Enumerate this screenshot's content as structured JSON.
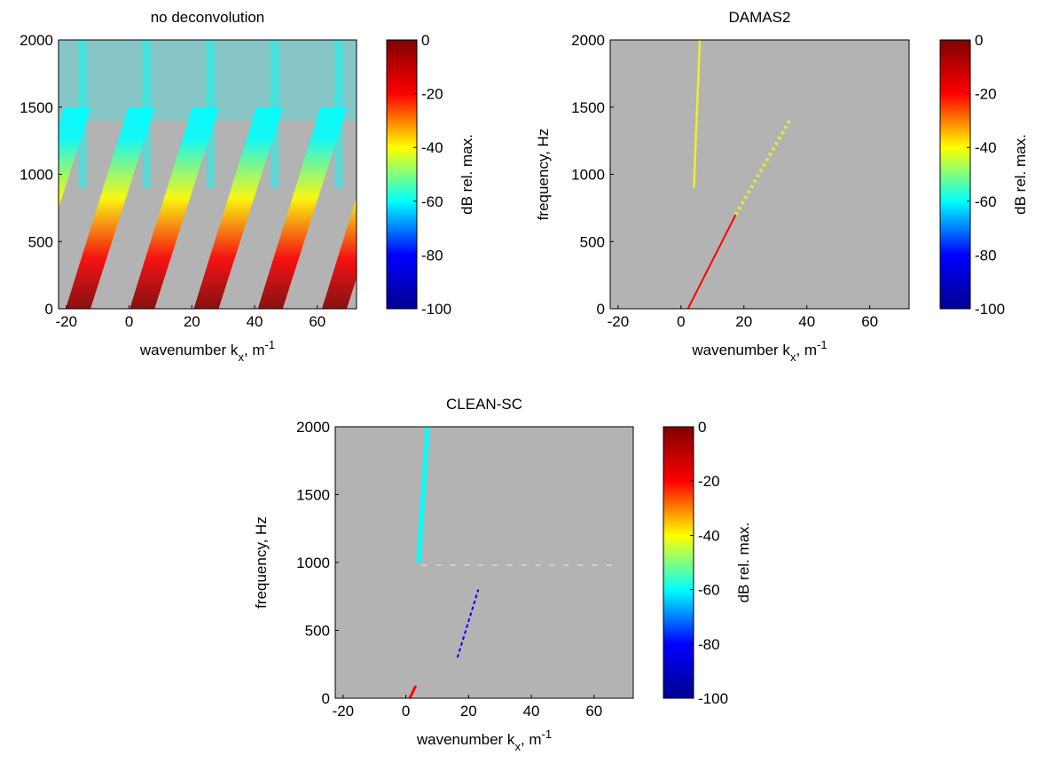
{
  "chart_data": [
    {
      "type": "heatmap",
      "title": "no deconvolution",
      "xlabel": [
        "wavenumber k",
        "x",
        ", m",
        "-1"
      ],
      "xlim": [
        -22.5,
        72.5
      ],
      "xticks": [
        -20,
        0,
        20,
        40,
        60
      ],
      "ylim": [
        0,
        2000
      ],
      "yticks": [
        0,
        500,
        1000,
        1500,
        2000
      ],
      "background": "#b3b3b3",
      "colorbar": {
        "label": "dB rel. max.",
        "lim": [
          -100,
          0
        ],
        "ticks": [
          -100,
          -80,
          -60,
          -40,
          -20,
          0
        ],
        "colormap": [
          "#00008f",
          "#0000ff",
          "#00ffff",
          "#ffff00",
          "#ff0000",
          "#800000"
        ]
      }
    },
    {
      "type": "heatmap",
      "title": "DAMAS2",
      "xlabel": [
        "wavenumber k",
        "x",
        ", m",
        "-1"
      ],
      "ylabel": "frequency, Hz",
      "xlim": [
        -22.5,
        72.5
      ],
      "xticks": [
        -20,
        0,
        20,
        40,
        60
      ],
      "ylim": [
        0,
        2000
      ],
      "yticks": [
        0,
        500,
        1000,
        1500,
        2000
      ],
      "background": "#b3b3b3",
      "colorbar": {
        "label": "dB rel. max.",
        "lim": [
          -100,
          0
        ],
        "ticks": [
          -100,
          -80,
          -60,
          -40,
          -20,
          0
        ],
        "colormap": [
          "#00008f",
          "#0000ff",
          "#00ffff",
          "#ffff00",
          "#ff0000",
          "#800000"
        ]
      }
    },
    {
      "type": "heatmap",
      "title": "CLEAN-SC",
      "xlabel": [
        "wavenumber k",
        "x",
        ", m",
        "-1"
      ],
      "ylabel": "frequency, Hz",
      "xlim": [
        -22.5,
        72.5
      ],
      "xticks": [
        -20,
        0,
        20,
        40,
        60
      ],
      "ylim": [
        0,
        2000
      ],
      "yticks": [
        0,
        500,
        1000,
        1500,
        2000
      ],
      "background": "#b3b3b3",
      "colorbar": {
        "label": "dB rel. max.",
        "lim": [
          -100,
          0
        ],
        "ticks": [
          -100,
          -80,
          -60,
          -40,
          -20,
          0
        ],
        "colormap": [
          "#00008f",
          "#0000ff",
          "#00ffff",
          "#ffff00",
          "#ff0000",
          "#800000"
        ]
      }
    }
  ]
}
